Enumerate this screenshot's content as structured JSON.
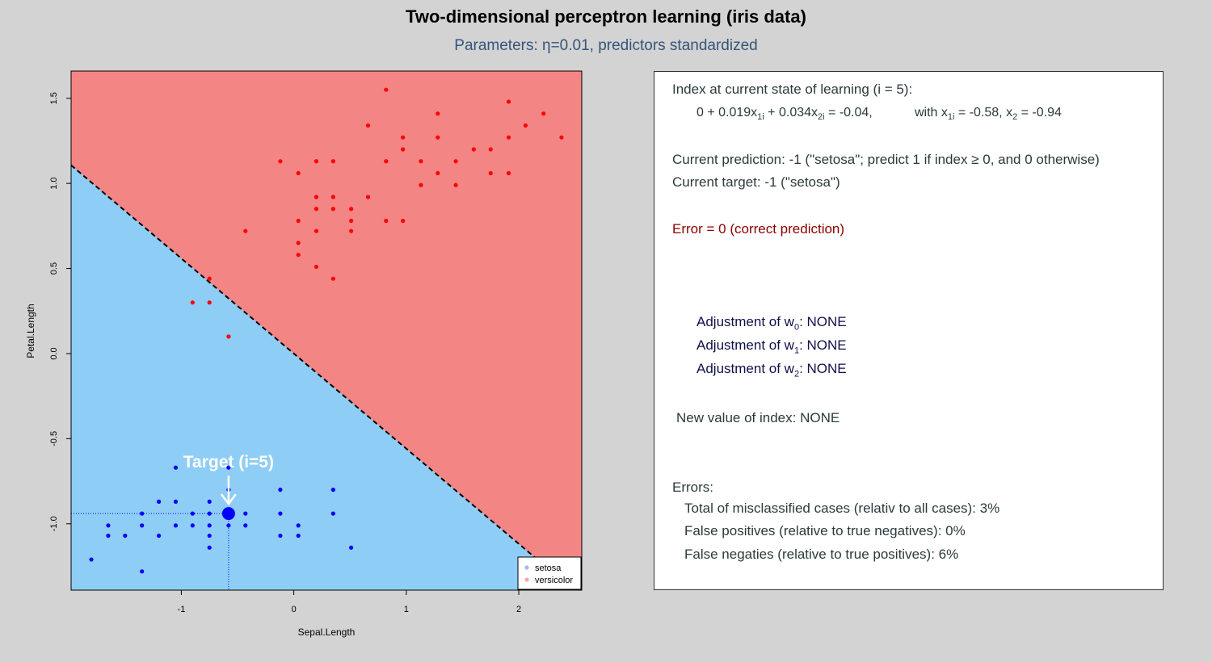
{
  "header": {
    "title": "Two-dimensional perceptron learning (iris data)",
    "subtitle": "Parameters: η=0.01, predictors standardized"
  },
  "chart_data": {
    "type": "scatter",
    "xlabel": "Sepal.Length",
    "ylabel": "Petal.Length",
    "xlim": [
      -1.98,
      2.56
    ],
    "ylim": [
      -1.39,
      1.66
    ],
    "xticks": [
      -1,
      0,
      1,
      2
    ],
    "yticks": [
      -1.0,
      -0.5,
      0.0,
      0.5,
      1.0,
      1.5
    ],
    "xtick_labels": [
      "-1",
      "0",
      "1",
      "2"
    ],
    "ytick_labels": [
      "-1.0",
      "-0.5",
      "0.0",
      "0.5",
      "1.0",
      "1.5"
    ],
    "decision_boundary": {
      "w0": 0,
      "w1": 0.019,
      "w2": 0.034
    },
    "region_colors": {
      "negative": "#8ecdf5",
      "positive": "#f38585"
    },
    "series": [
      {
        "name": "setosa",
        "color": "#0000ff",
        "legend_color": "#aab4f0",
        "points": [
          [
            -1.8,
            -1.21
          ],
          [
            -1.65,
            -1.01
          ],
          [
            -1.65,
            -1.07
          ],
          [
            -1.5,
            -1.07
          ],
          [
            -1.35,
            -0.94
          ],
          [
            -1.35,
            -1.01
          ],
          [
            -1.35,
            -1.28
          ],
          [
            -1.2,
            -0.87
          ],
          [
            -1.2,
            -1.07
          ],
          [
            -1.05,
            -0.67
          ],
          [
            -1.05,
            -0.87
          ],
          [
            -1.05,
            -1.01
          ],
          [
            -0.9,
            -0.94
          ],
          [
            -0.9,
            -1.01
          ],
          [
            -0.75,
            -0.87
          ],
          [
            -0.75,
            -0.94
          ],
          [
            -0.75,
            -1.01
          ],
          [
            -0.75,
            -1.07
          ],
          [
            -0.75,
            -1.14
          ],
          [
            -0.58,
            -0.67
          ],
          [
            -0.58,
            -0.8
          ],
          [
            -0.58,
            -1.01
          ],
          [
            -0.43,
            -0.94
          ],
          [
            -0.43,
            -1.01
          ],
          [
            -0.12,
            -0.8
          ],
          [
            -0.12,
            -0.94
          ],
          [
            -0.12,
            -1.07
          ],
          [
            0.04,
            -1.01
          ],
          [
            0.04,
            -1.07
          ],
          [
            0.35,
            -0.8
          ],
          [
            0.35,
            -0.94
          ],
          [
            0.51,
            -1.14
          ]
        ]
      },
      {
        "name": "versicolor",
        "color": "#ff0000",
        "legend_color": "#f4a8a8",
        "points": [
          [
            -0.9,
            0.3
          ],
          [
            -0.75,
            0.44
          ],
          [
            -0.75,
            0.3
          ],
          [
            -0.58,
            0.1
          ],
          [
            -0.43,
            0.72
          ],
          [
            -0.12,
            1.13
          ],
          [
            0.04,
            1.06
          ],
          [
            0.04,
            0.78
          ],
          [
            0.04,
            0.65
          ],
          [
            0.04,
            0.58
          ],
          [
            0.2,
            1.13
          ],
          [
            0.2,
            0.92
          ],
          [
            0.2,
            0.85
          ],
          [
            0.2,
            0.72
          ],
          [
            0.2,
            0.51
          ],
          [
            0.35,
            1.13
          ],
          [
            0.35,
            0.92
          ],
          [
            0.35,
            0.85
          ],
          [
            0.35,
            0.44
          ],
          [
            0.51,
            0.85
          ],
          [
            0.51,
            0.78
          ],
          [
            0.51,
            0.72
          ],
          [
            0.66,
            1.34
          ],
          [
            0.66,
            0.92
          ],
          [
            0.82,
            1.55
          ],
          [
            0.82,
            1.13
          ],
          [
            0.82,
            0.78
          ],
          [
            0.97,
            1.27
          ],
          [
            0.97,
            1.2
          ],
          [
            0.97,
            0.78
          ],
          [
            1.13,
            1.13
          ],
          [
            1.13,
            0.99
          ],
          [
            1.28,
            1.41
          ],
          [
            1.28,
            1.27
          ],
          [
            1.28,
            1.06
          ],
          [
            1.44,
            1.13
          ],
          [
            1.44,
            0.99
          ],
          [
            1.6,
            1.2
          ],
          [
            1.75,
            1.2
          ],
          [
            1.75,
            1.06
          ],
          [
            1.91,
            1.48
          ],
          [
            1.91,
            1.27
          ],
          [
            1.91,
            1.06
          ],
          [
            2.06,
            1.34
          ],
          [
            2.22,
            1.41
          ],
          [
            2.38,
            1.27
          ]
        ]
      }
    ],
    "target": {
      "label": "Target (i=5)",
      "x": -0.58,
      "y": -0.94,
      "color": "#0000ff"
    },
    "legend": {
      "placement": "bottom-right",
      "entries": [
        "setosa",
        "versicolor"
      ]
    }
  },
  "panel": {
    "index_title": "Index at current state of learning (i = 5):",
    "index_expr": "0 + 0.019x",
    "index_s1": "1i",
    "index_plus": " + 0.034x",
    "index_s2": "2i",
    "index_val": " = -0.04,",
    "with_label": "with  x",
    "with_s1": "1i",
    "with_val1": " = -0.58,  x",
    "with_s2": "2",
    "with_val2": " = -0.94",
    "prediction": "Current prediction: -1 (\"setosa\"; predict 1 if index ≥ 0, and 0 otherwise)",
    "target": "Current target: -1 (\"setosa\")",
    "error": "Error = 0 (correct prediction)",
    "adj_prefix": "Adjustment of w",
    "adj_w0_sub": "0",
    "adj_w1_sub": "1",
    "adj_w2_sub": "2",
    "adj_value": ": NONE",
    "new_index": "New value of index: NONE",
    "errors_title": "Errors:",
    "total_misclassified": "Total of misclassified cases (relativ to all cases): 3%",
    "false_positives": "False positives (relative to true negatives): 0%",
    "false_negatives": "False negaties (relative to true positives): 6%"
  }
}
